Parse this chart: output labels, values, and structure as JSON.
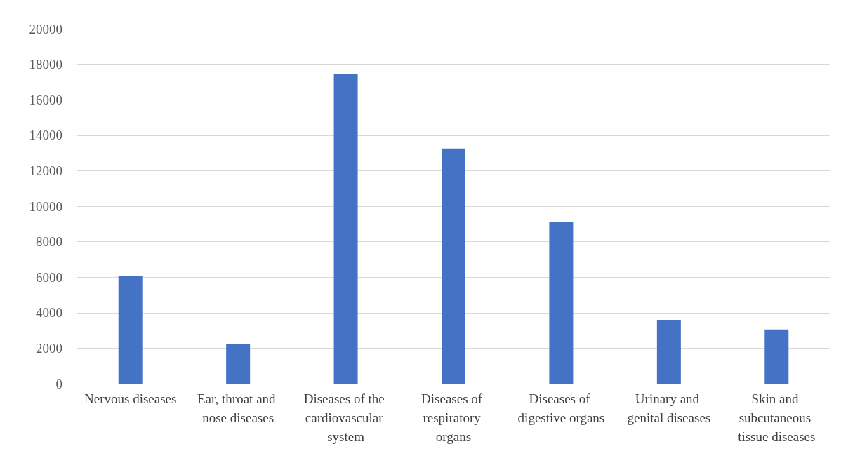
{
  "chart_data": {
    "type": "bar",
    "categories": [
      "Nervous diseases",
      "Ear, throat and nose diseases",
      "Diseases of the cardiovascular system",
      "Diseases of respiratory organs",
      "Diseases of digestive organs",
      "Urinary and genital diseases",
      "Skin and subcutaneous tissue diseases"
    ],
    "values": [
      6050,
      2250,
      17450,
      13250,
      9100,
      3600,
      3050
    ],
    "color": "#4472c4",
    "ylim": [
      0,
      20000
    ],
    "yticks": [
      0,
      2000,
      4000,
      6000,
      8000,
      10000,
      12000,
      14000,
      16000,
      18000,
      20000
    ],
    "grid": "y"
  }
}
